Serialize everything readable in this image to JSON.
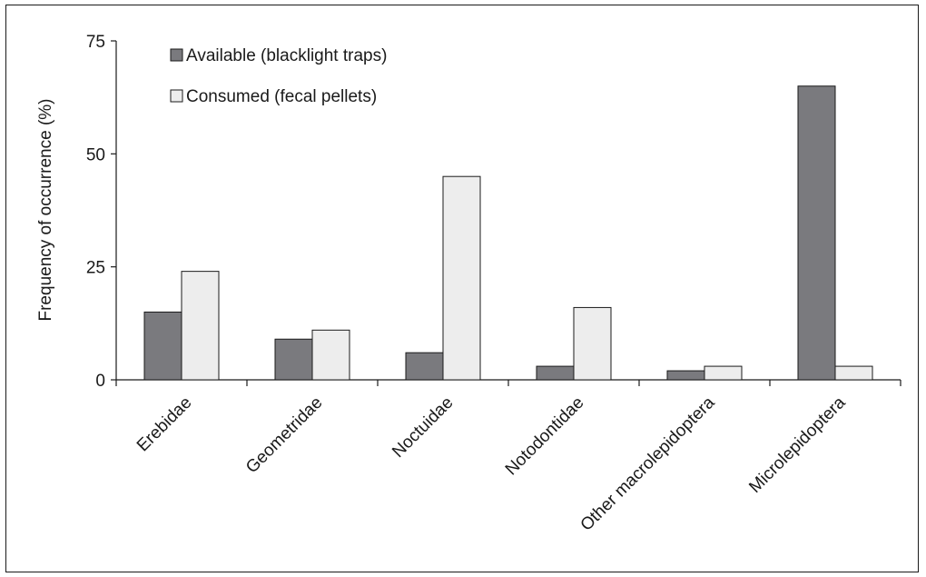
{
  "chart_data": {
    "type": "bar",
    "title": "",
    "xlabel": "",
    "ylabel": "Frequency of occurrence (%)",
    "ylim": [
      0,
      75
    ],
    "yticks": [
      0,
      25,
      50,
      75
    ],
    "grid": false,
    "legend_position": "top-left",
    "categories": [
      "Erebidae",
      "Geometridae",
      "Noctuidae",
      "Notodontidae",
      "Other macrolepidoptera",
      "Microlepidoptera"
    ],
    "series": [
      {
        "name": "Available (blacklight traps)",
        "color": "#7a7a7e",
        "values": [
          15,
          9,
          6,
          3,
          2,
          65
        ]
      },
      {
        "name": "Consumed (fecal pellets)",
        "color": "#ededed",
        "values": [
          24,
          11,
          45,
          16,
          3,
          3
        ]
      }
    ]
  }
}
